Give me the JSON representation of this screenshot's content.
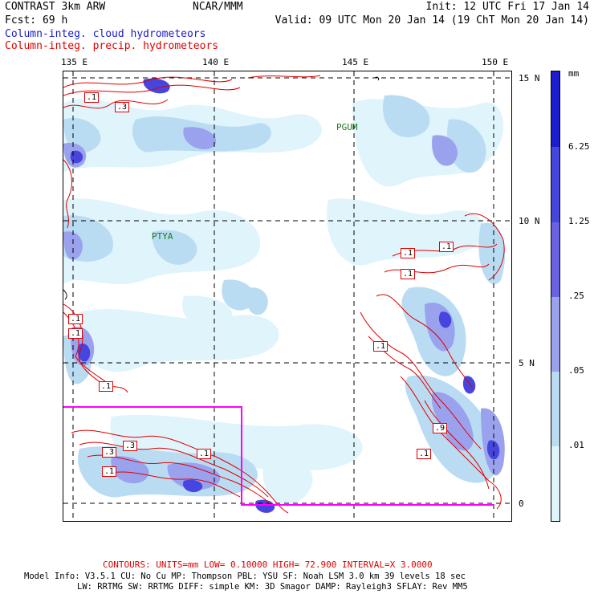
{
  "header": {
    "model": "CONTRAST  3km ARW",
    "center": "NCAR/MMM",
    "init": "Init: 12 UTC Fri 17 Jan 14",
    "fcst": "Fcst:   69 h",
    "valid": "Valid: 09 UTC Mon 20 Jan 14 (19 ChT Mon 20 Jan 14)",
    "legend_cloud": "Column-integ. cloud hydrometeors",
    "legend_precip": "Column-integ. precip. hydrometeors"
  },
  "colors": {
    "cloud_level1": "#dff4fb",
    "cloud_level2": "#b9dcf3",
    "cloud_level3": "#9aa2ee",
    "cloud_level4": "#6a62e4",
    "cloud_level5": "#4646de",
    "cloud_level6": "#1d1dd0",
    "precip_contour": "#e00000",
    "box": "#ff00ff",
    "station": "#1a7a1a"
  },
  "axes": {
    "lon_labels": [
      "135 E",
      "140 E",
      "145 E",
      "150 E"
    ],
    "lat_labels": [
      "15 N",
      "10 N",
      "5 N",
      "0"
    ]
  },
  "stations": {
    "guam": "PGUM",
    "palau": "PTYA"
  },
  "contour_labels": [
    ".1",
    ".3",
    ".1",
    ".1",
    ".3",
    ".1",
    ".1",
    ".1",
    ".1",
    ".1",
    ".1",
    ".3",
    ".1",
    ".9",
    ".1"
  ],
  "colorbar": {
    "unit": "mm",
    "labels": [
      "6.25",
      "1.25",
      ".25",
      ".05",
      ".01"
    ]
  },
  "footer": {
    "contours": "CONTOURS:  UNITS=mm  LOW= 0.10000      HIGH= 72.900      INTERVAL=X  3.0000",
    "model_info_1": "Model Info: V3.5.1    CU: No Cu     MP: Thompson     PBL: YSU       SF: Noah LSM     3.0 km   39 levels    18 sec",
    "model_info_2": "LW: RRTMG     SW: RRTMG   DIFF: simple KM: 3D Smagor DAMP: Rayleigh3  SFLAY: Rev MM5"
  }
}
